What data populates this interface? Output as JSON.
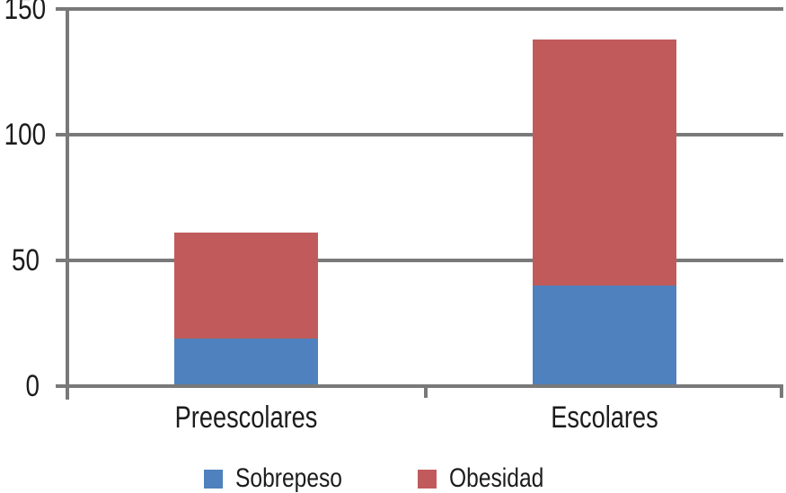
{
  "chart_data": {
    "type": "bar",
    "stacked": true,
    "orientation": "vertical",
    "categories": [
      "Preescolares",
      "Escolares"
    ],
    "series": [
      {
        "name": "Sobrepeso",
        "color": "#4e81bd",
        "values": [
          19,
          40
        ]
      },
      {
        "name": "Obesidad",
        "color": "#c15b5b",
        "values": [
          42,
          98
        ]
      }
    ],
    "title": "",
    "xlabel": "",
    "ylabel": "",
    "ylim": [
      0,
      150
    ],
    "yticks": [
      0,
      50,
      100,
      150
    ],
    "ytick_labels": [
      "0",
      "50",
      "100",
      "150"
    ],
    "grid": "horizontal",
    "legend_position": "bottom"
  },
  "colors": {
    "axis_and_grid": "#797979",
    "text": "#1c1c1c",
    "background": "#ffffff",
    "sobrepeso_blue": "#4e81bd",
    "obesidad_red": "#c15b5b"
  }
}
